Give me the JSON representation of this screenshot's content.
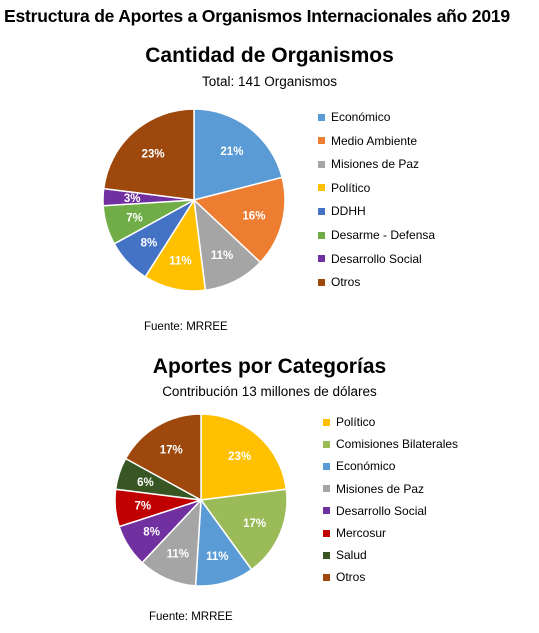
{
  "main_title": "Estructura de Aportes a Organismos Internacionales año 2019",
  "charts": [
    {
      "title": "Cantidad de Organismos",
      "subtitle": "Total: 141 Organismos",
      "source": "Fuente: MRREE"
    },
    {
      "title": "Aportes por Categorías",
      "subtitle": "Contribución 13 millones de dólares",
      "source": "Fuente: MRREE"
    }
  ],
  "chart_data": [
    {
      "type": "pie",
      "title": "Cantidad de Organismos",
      "legend_position": "right",
      "slices": [
        {
          "label": "Económico",
          "value": 21,
          "display": "21%",
          "color": "#5B9BD5"
        },
        {
          "label": "Medio Ambiente",
          "value": 16,
          "display": "16%",
          "color": "#ED7D31"
        },
        {
          "label": "Misiones de Paz",
          "value": 11,
          "display": "11%",
          "color": "#A5A5A5"
        },
        {
          "label": "Político",
          "value": 11,
          "display": "11%",
          "color": "#FFC000"
        },
        {
          "label": "DDHH",
          "value": 8,
          "display": "8%",
          "color": "#4472C4"
        },
        {
          "label": "Desarme - Defensa",
          "value": 7,
          "display": "7%",
          "color": "#70AD47"
        },
        {
          "label": "Desarrollo Social",
          "value": 3,
          "display": "3%",
          "color": "#7030A0"
        },
        {
          "label": "Otros",
          "value": 23,
          "display": "23%",
          "color": "#9E480E"
        }
      ]
    },
    {
      "type": "pie",
      "title": "Aportes por Categorías",
      "legend_position": "right",
      "slices": [
        {
          "label": "Político",
          "value": 23,
          "display": "23%",
          "color": "#FFC000"
        },
        {
          "label": "Comisiones Bilaterales",
          "value": 17,
          "display": "17%",
          "color": "#9BBB59"
        },
        {
          "label": "Económico",
          "value": 11,
          "display": "11%",
          "color": "#5B9BD5"
        },
        {
          "label": "Misiones de Paz",
          "value": 11,
          "display": "11%",
          "color": "#A5A5A5"
        },
        {
          "label": "Desarrollo Social",
          "value": 8,
          "display": "8%",
          "color": "#7030A0"
        },
        {
          "label": "Mercosur",
          "value": 7,
          "display": "7%",
          "color": "#C00000"
        },
        {
          "label": "Salud",
          "value": 6,
          "display": "6%",
          "color": "#375623"
        },
        {
          "label": "Otros",
          "value": 17,
          "display": "17%",
          "color": "#9E480E"
        }
      ]
    }
  ]
}
